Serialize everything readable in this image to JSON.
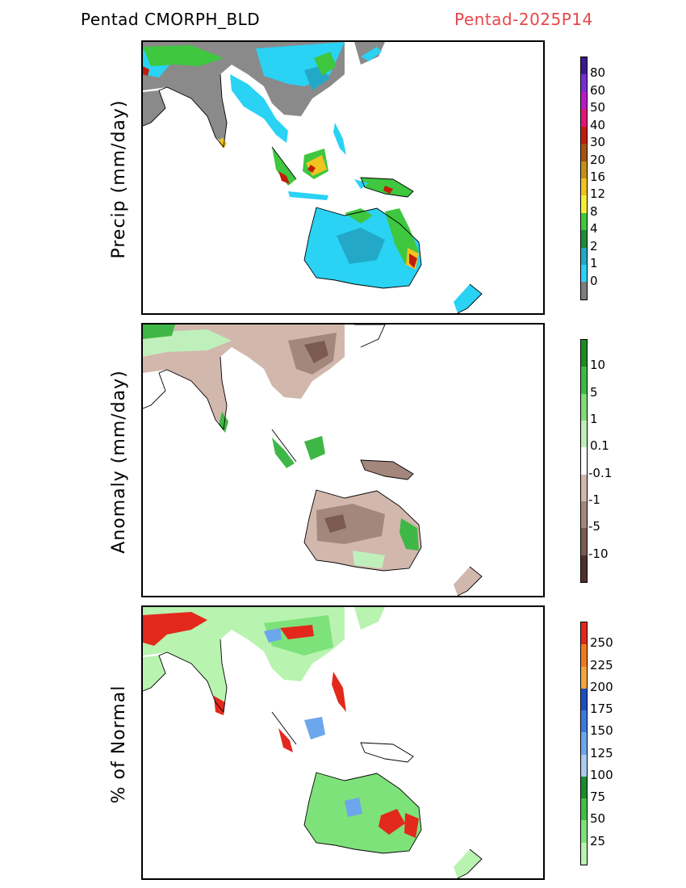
{
  "header": {
    "left_title": "Pentad CMORPH_BLD",
    "right_title": "Pentad-2025P14"
  },
  "panels": [
    {
      "id": "precip",
      "ylabel": "Precip (mm/day)",
      "colorbar": {
        "colors": [
          "#7d7d7d",
          "#2ad2f4",
          "#23a8c8",
          "#1f8c3a",
          "#3ec73f",
          "#f6ee37",
          "#f0c31e",
          "#c49014",
          "#a8520f",
          "#c21c0c",
          "#e1157a",
          "#b81ac7",
          "#7a2bd4",
          "#3c1a90"
        ],
        "labels": [
          "0",
          "1",
          "2",
          "4",
          "8",
          "12",
          "16",
          "20",
          "30",
          "40",
          "50",
          "60",
          "80"
        ]
      }
    },
    {
      "id": "anomaly",
      "ylabel": "Anomaly (mm/day)",
      "colorbar": {
        "colors": [
          "#4f2f2b",
          "#7a5a52",
          "#a3877d",
          "#d2b7ad",
          "#ffffff",
          "#bff0bb",
          "#7fdc79",
          "#3fb746",
          "#1a8c23"
        ],
        "labels": [
          "-10",
          "-5",
          "-1",
          "-0.1",
          "0.1",
          "1",
          "5",
          "10"
        ]
      }
    },
    {
      "id": "percent",
      "ylabel": "% of Normal",
      "colorbar": {
        "colors": [
          "#b8f3b0",
          "#7ee27a",
          "#3fbf45",
          "#1d8b2b",
          "#a9ccf4",
          "#6ca6ec",
          "#3b7be0",
          "#1f4fbf",
          "#f5a53a",
          "#f27a1a",
          "#e2291c"
        ],
        "labels": [
          "25",
          "50",
          "75",
          "100",
          "125",
          "150",
          "175",
          "200",
          "225",
          "250"
        ]
      }
    }
  ]
}
